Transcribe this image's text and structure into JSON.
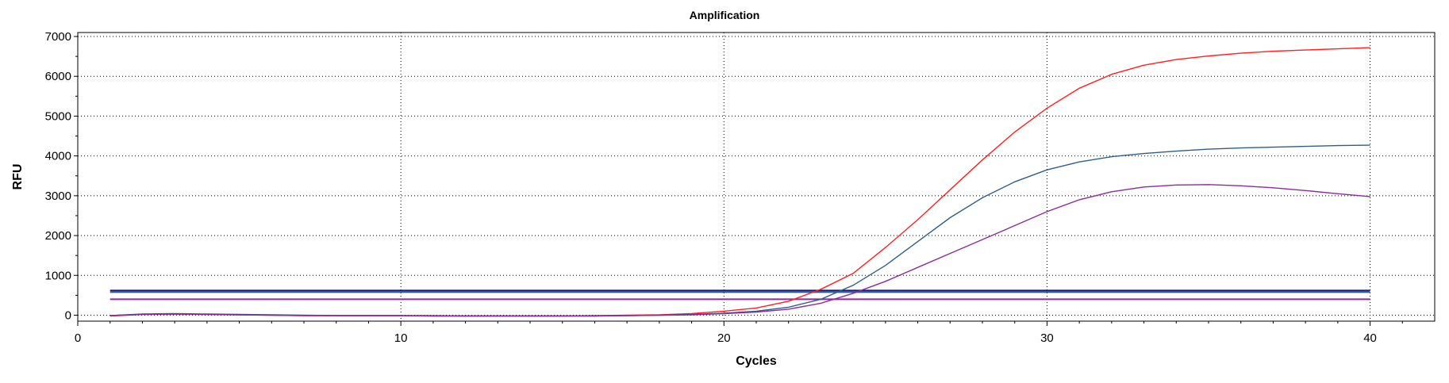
{
  "chart_data": {
    "type": "line",
    "title": "Amplification",
    "xlabel": "Cycles",
    "ylabel": "RFU",
    "xlim": [
      0,
      42
    ],
    "ylim": [
      -150,
      7100
    ],
    "x_ticks": [
      0,
      10,
      20,
      30,
      40
    ],
    "y_ticks": [
      0,
      1000,
      2000,
      3000,
      4000,
      5000,
      6000,
      7000
    ],
    "grid": true,
    "legend": "none",
    "x": [
      1,
      2,
      3,
      4,
      5,
      6,
      7,
      8,
      9,
      10,
      11,
      12,
      13,
      14,
      15,
      16,
      17,
      18,
      19,
      20,
      21,
      22,
      23,
      24,
      25,
      26,
      27,
      28,
      29,
      30,
      31,
      32,
      33,
      34,
      35,
      36,
      37,
      38,
      39,
      40
    ],
    "series": [
      {
        "color": "#ff2020",
        "values": [
          -20,
          20,
          30,
          20,
          10,
          0,
          -10,
          -10,
          -10,
          -10,
          -10,
          -20,
          -20,
          -20,
          -20,
          -10,
          0,
          10,
          40,
          100,
          180,
          350,
          650,
          1050,
          1700,
          2400,
          3150,
          3900,
          4600,
          5200,
          5700,
          6050,
          6280,
          6420,
          6510,
          6580,
          6630,
          6660,
          6690,
          6720
        ]
      },
      {
        "color": "#2e5f8a",
        "values": [
          -10,
          30,
          40,
          30,
          20,
          10,
          0,
          -10,
          -10,
          -10,
          -20,
          -20,
          -20,
          -20,
          -20,
          -20,
          -10,
          0,
          20,
          50,
          100,
          200,
          400,
          750,
          1250,
          1850,
          2450,
          2950,
          3350,
          3650,
          3850,
          3980,
          4060,
          4120,
          4170,
          4200,
          4220,
          4240,
          4260,
          4270
        ]
      },
      {
        "color": "#8b2b9e",
        "values": [
          -10,
          20,
          30,
          20,
          10,
          0,
          -10,
          -10,
          -10,
          -10,
          -20,
          -20,
          -20,
          -20,
          -20,
          -20,
          -10,
          0,
          10,
          40,
          80,
          150,
          300,
          550,
          850,
          1200,
          1550,
          1900,
          2250,
          2600,
          2900,
          3100,
          3220,
          3270,
          3280,
          3250,
          3200,
          3130,
          3050,
          2980
        ]
      }
    ],
    "threshold_lines": [
      {
        "y": 620,
        "x_start": 1,
        "x_end": 40,
        "color": "#1a1a7a"
      },
      {
        "y": 580,
        "x_start": 1,
        "x_end": 40,
        "color": "#2e5f8a"
      },
      {
        "y": 400,
        "x_start": 1,
        "x_end": 40,
        "color": "#8b2b9e"
      }
    ]
  }
}
